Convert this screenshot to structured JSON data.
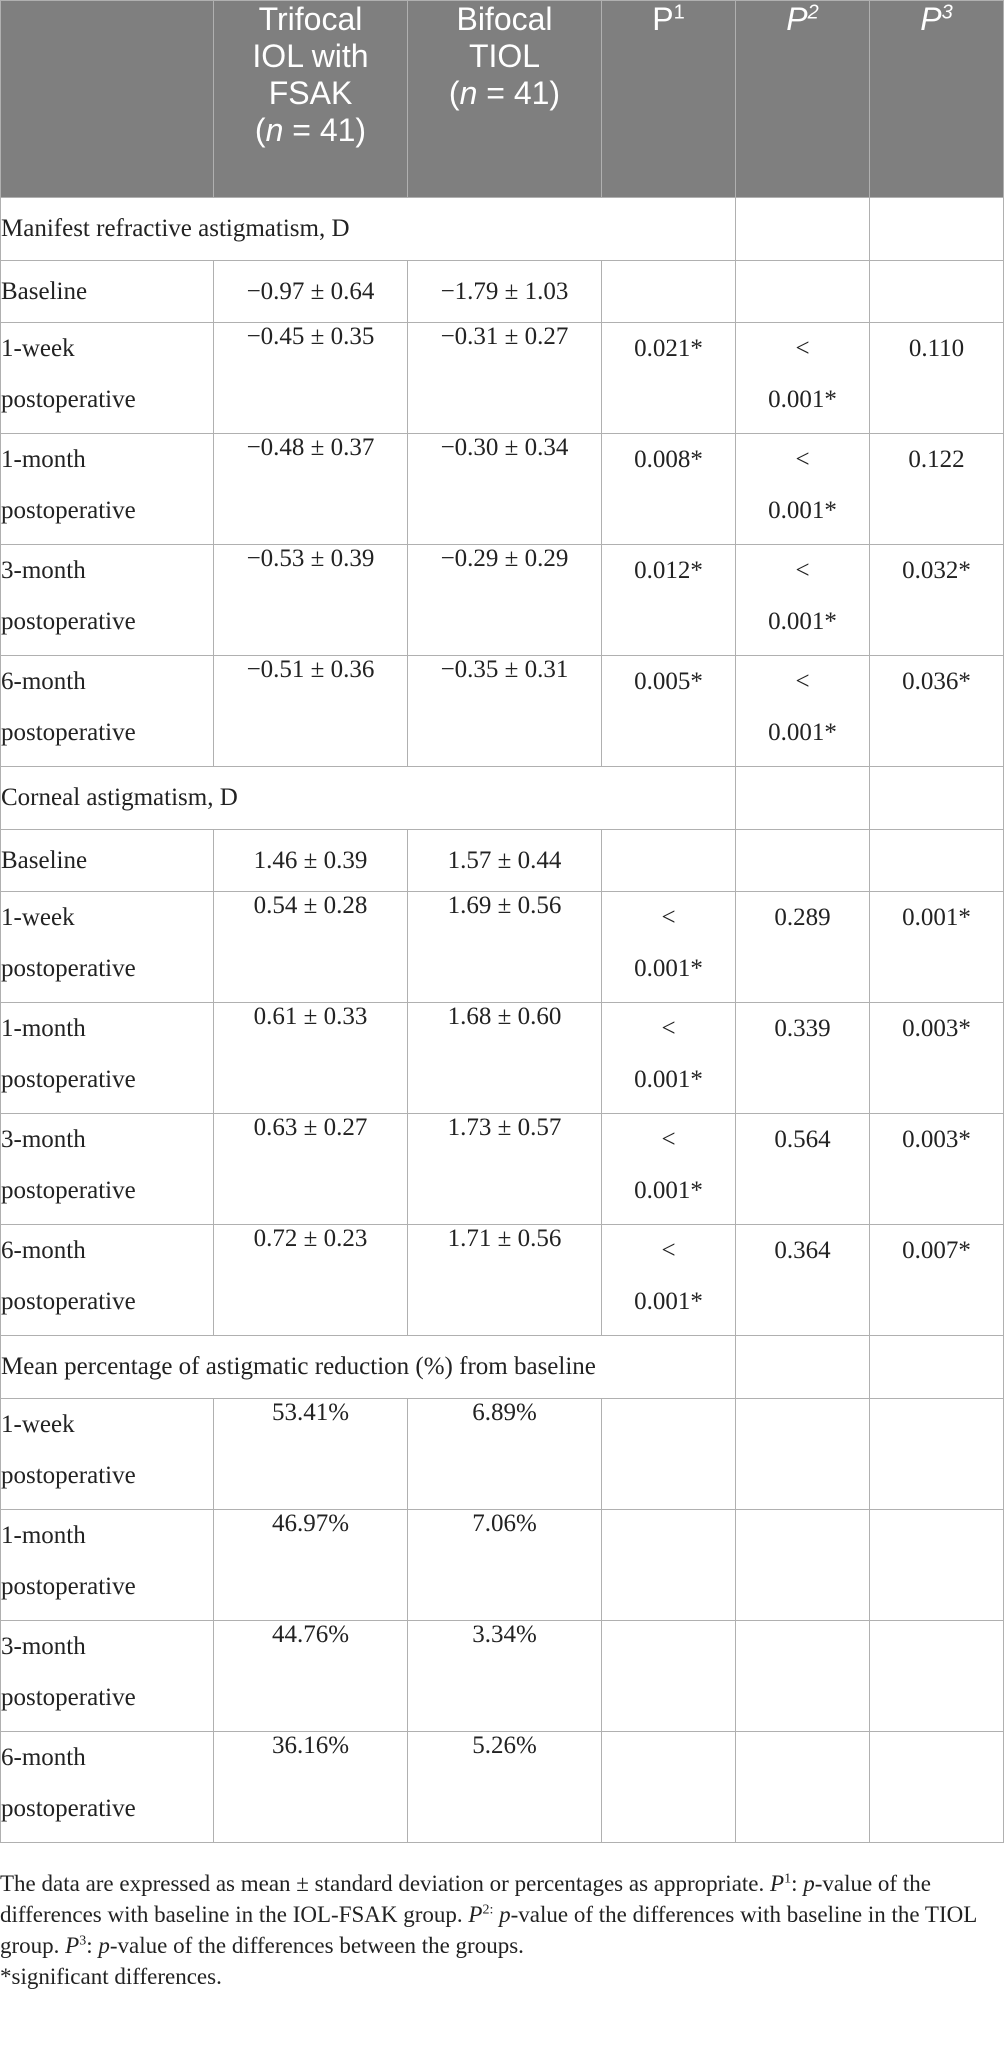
{
  "header": {
    "col_trifocal": [
      "Trifocal",
      "IOL with",
      "FSAK",
      "(n = 41)"
    ],
    "col_bifocal": [
      "Bifocal",
      "TIOL",
      "(n = 41)"
    ],
    "p1": "P",
    "p1_sup": "1",
    "p2": "P",
    "p2_sup": "2",
    "p3": "P",
    "p3_sup": "3"
  },
  "sections": [
    {
      "title": "Manifest refractive astigmatism, D",
      "rows": [
        {
          "label": [
            "Baseline"
          ],
          "trifocal": "−0.97 ± 0.64",
          "bifocal": "−1.79 ± 1.03",
          "p1": "",
          "p2": "",
          "p3": ""
        },
        {
          "label": [
            "1-week",
            "postoperative"
          ],
          "trifocal": "−0.45 ± 0.35",
          "bifocal": "−0.31 ± 0.27",
          "p1": "0.021*",
          "p2": "< 0.001*",
          "p3": "0.110"
        },
        {
          "label": [
            "1-month",
            "postoperative"
          ],
          "trifocal": "−0.48 ± 0.37",
          "bifocal": "−0.30 ± 0.34",
          "p1": "0.008*",
          "p2": "< 0.001*",
          "p3": "0.122"
        },
        {
          "label": [
            "3-month",
            "postoperative"
          ],
          "trifocal": "−0.53 ± 0.39",
          "bifocal": "−0.29 ± 0.29",
          "p1": "0.012*",
          "p2": "< 0.001*",
          "p3": "0.032*"
        },
        {
          "label": [
            "6-month",
            "postoperative"
          ],
          "trifocal": "−0.51 ± 0.36",
          "bifocal": "−0.35 ± 0.31",
          "p1": "0.005*",
          "p2": "< 0.001*",
          "p3": "0.036*"
        }
      ]
    },
    {
      "title": "Corneal astigmatism, D",
      "rows": [
        {
          "label": [
            "Baseline"
          ],
          "trifocal": "1.46 ± 0.39",
          "bifocal": "1.57 ± 0.44",
          "p1": "",
          "p2": "",
          "p3": ""
        },
        {
          "label": [
            "1-week",
            "postoperative"
          ],
          "trifocal": "0.54 ± 0.28",
          "bifocal": "1.69 ± 0.56",
          "p1": "< 0.001*",
          "p2": "0.289",
          "p3": "0.001*"
        },
        {
          "label": [
            "1-month",
            "postoperative"
          ],
          "trifocal": "0.61 ± 0.33",
          "bifocal": "1.68 ± 0.60",
          "p1": "< 0.001*",
          "p2": "0.339",
          "p3": "0.003*"
        },
        {
          "label": [
            "3-month",
            "postoperative"
          ],
          "trifocal": "0.63 ± 0.27",
          "bifocal": "1.73 ± 0.57",
          "p1": "< 0.001*",
          "p2": "0.564",
          "p3": "0.003*"
        },
        {
          "label": [
            "6-month",
            "postoperative"
          ],
          "trifocal": "0.72 ± 0.23",
          "bifocal": "1.71 ± 0.56",
          "p1": "< 0.001*",
          "p2": "0.364",
          "p3": "0.007*"
        }
      ]
    },
    {
      "title": "Mean percentage of astigmatic reduction (%) from baseline",
      "rows": [
        {
          "label": [
            "1-week",
            "postoperative"
          ],
          "trifocal": "53.41%",
          "bifocal": "6.89%",
          "p1": "",
          "p2": "",
          "p3": ""
        },
        {
          "label": [
            "1-month",
            "postoperative"
          ],
          "trifocal": "46.97%",
          "bifocal": "7.06%",
          "p1": "",
          "p2": "",
          "p3": ""
        },
        {
          "label": [
            "3-month",
            "postoperative"
          ],
          "trifocal": "44.76%",
          "bifocal": "3.34%",
          "p1": "",
          "p2": "",
          "p3": ""
        },
        {
          "label": [
            "6-month",
            "postoperative"
          ],
          "trifocal": "36.16%",
          "bifocal": "5.26%",
          "p1": "",
          "p2": "",
          "p3": ""
        }
      ]
    }
  ],
  "footnote": {
    "line1_a": "The data are expressed as mean ± standard deviation or percentages as appropriate. ",
    "p1_sym": "P",
    "p1_sup": "1",
    "p1_sep": ": ",
    "p1_italic": "p",
    "p1_text": "-value of the differences with baseline in the IOL-FSAK group. ",
    "p2_sym": "P",
    "p2_sup": "2:",
    "p2_sep": " ",
    "p2_italic": "p",
    "p2_text": "-value of the differences with baseline in the TIOL group. ",
    "p3_sym": "P",
    "p3_sup": "3",
    "p3_sep": ": ",
    "p3_italic": "p",
    "p3_text": "-value of the differences between the groups.",
    "sig": "*significant differences."
  }
}
